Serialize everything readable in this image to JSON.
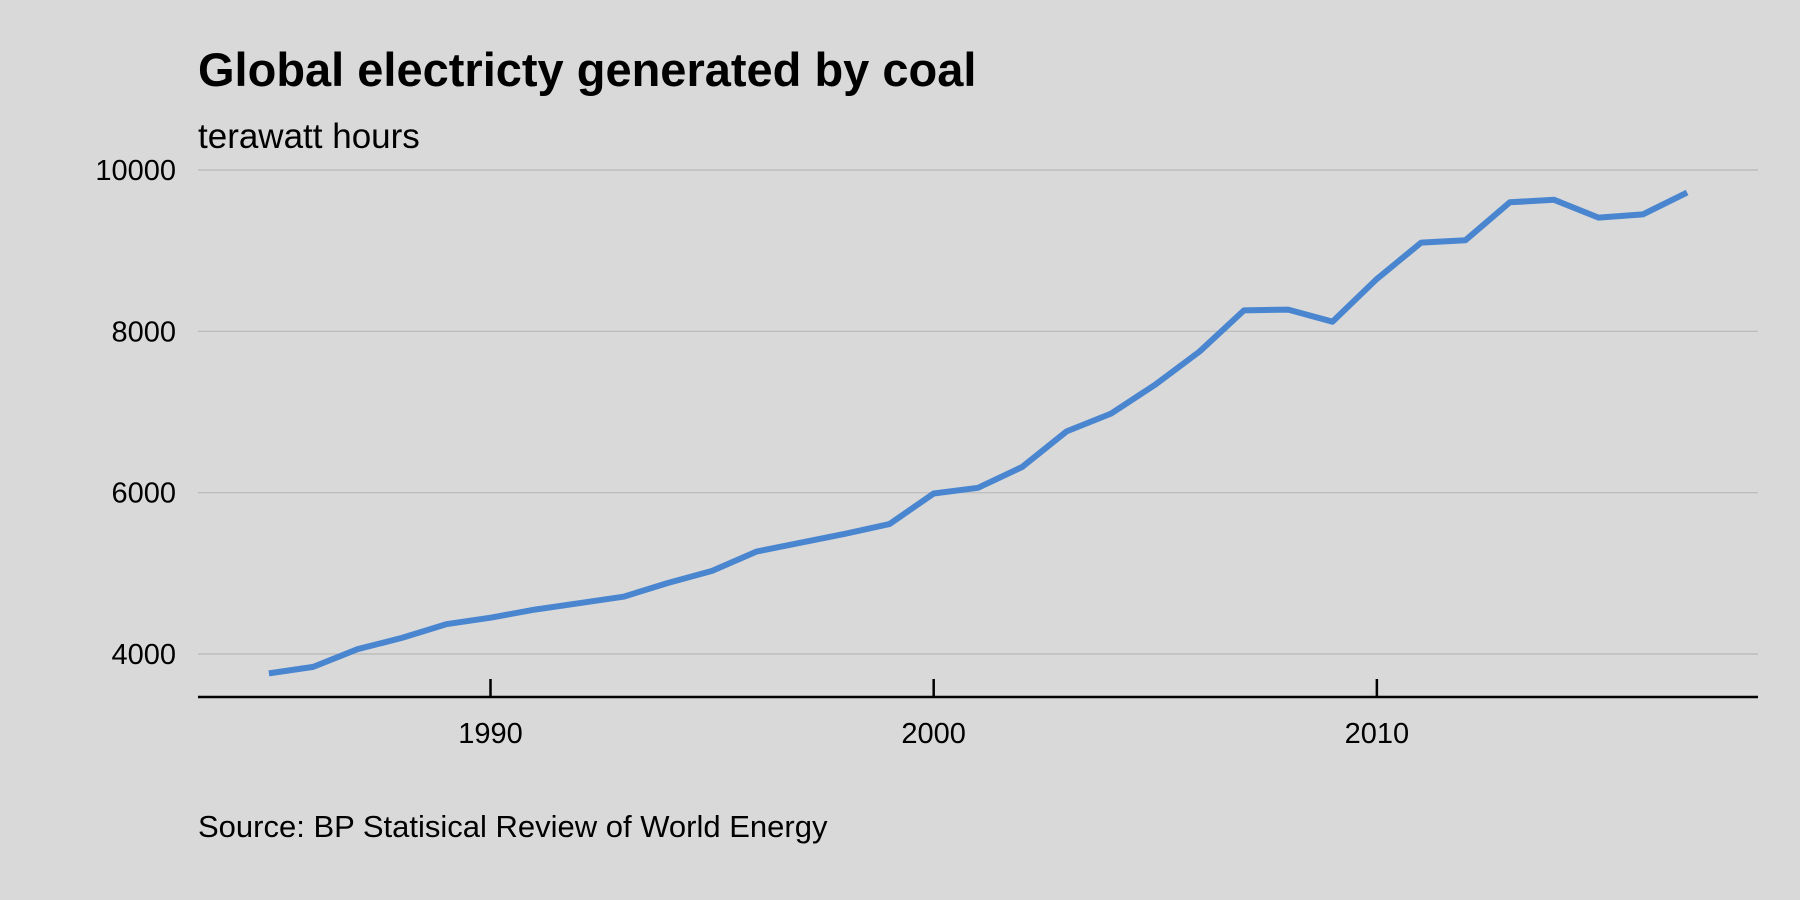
{
  "chart_data": {
    "type": "line",
    "title": "Global electricty generated by coal",
    "subtitle": "terawatt hours",
    "source": "Source: BP Statisical Review of World Energy",
    "xlabel": "",
    "ylabel": "",
    "xlim": [
      1983.4,
      2018.6
    ],
    "ylim": [
      3500,
      10000
    ],
    "x_ticks": [
      1990,
      2000,
      2010
    ],
    "y_ticks": [
      4000,
      6000,
      8000,
      10000
    ],
    "grid": "horizontal",
    "legend": "none",
    "series": [
      {
        "color": "#4a86d0",
        "x": [
          1985,
          1986,
          1987,
          1988,
          1989,
          1990,
          1991,
          1992,
          1993,
          1994,
          1995,
          1996,
          1997,
          1998,
          1999,
          2000,
          2001,
          2002,
          2003,
          2004,
          2005,
          2006,
          2007,
          2008,
          2009,
          2010,
          2011,
          2012,
          2013,
          2014,
          2015,
          2016,
          2017
        ],
        "values": [
          3760,
          3840,
          4060,
          4200,
          4370,
          4450,
          4550,
          4630,
          4710,
          4880,
          5030,
          5270,
          5380,
          5490,
          5610,
          5990,
          6060,
          6320,
          6760,
          6980,
          7340,
          7750,
          8260,
          8270,
          8120,
          8650,
          9100,
          9130,
          9600,
          9630,
          9410,
          9450,
          9720
        ]
      }
    ]
  }
}
